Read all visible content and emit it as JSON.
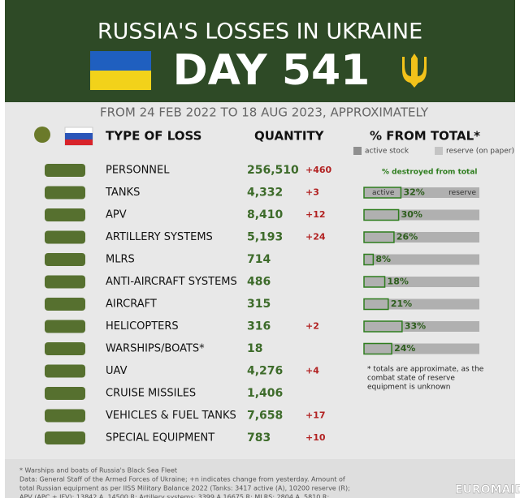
{
  "header": {
    "title": "RUSSIA'S LOSSES IN UKRAINE",
    "day": "DAY 541",
    "subtitle": "FROM 24 FEB 2022 TO 18 AUG 2023, APPROXIMATELY"
  },
  "columns": {
    "type": "TYPE OF LOSS",
    "quantity": "QUANTITY",
    "percent": "% FROM TOTAL*"
  },
  "legend": {
    "active": "active stock",
    "reserve": "reserve (on paper)"
  },
  "note": "% destroyed from total",
  "bar_labels": {
    "active": "active",
    "reserve": "reserve"
  },
  "rows": [
    {
      "label": "PERSONNEL",
      "quantity": "256,510",
      "change": "+460"
    },
    {
      "label": "TANKS",
      "quantity": "4,332",
      "change": "+3",
      "percent": {
        "value": 32,
        "label": "32%"
      }
    },
    {
      "label": "APV",
      "quantity": "8,410",
      "change": "+12",
      "percent": {
        "value": 30,
        "label": "30%"
      }
    },
    {
      "label": "ARTILLERY SYSTEMS",
      "quantity": "5,193",
      "change": "+24",
      "percent": {
        "value": 26,
        "label": "26%"
      }
    },
    {
      "label": "MLRS",
      "quantity": "714",
      "percent": {
        "value": 8,
        "label": "8%"
      }
    },
    {
      "label": "ANTI-AIRCRAFT SYSTEMS",
      "quantity": "486",
      "percent": {
        "value": 18,
        "label": "18%"
      }
    },
    {
      "label": "AIRCRAFT",
      "quantity": "315",
      "percent": {
        "value": 21,
        "label": "21%"
      }
    },
    {
      "label": "HELICOPTERS",
      "quantity": "316",
      "change": "+2",
      "percent": {
        "value": 33,
        "label": "33%"
      }
    },
    {
      "label": "WARSHIPS/BOATS*",
      "quantity": "18",
      "percent": {
        "value": 24,
        "label": "24%"
      }
    },
    {
      "label": "UAV",
      "quantity": "4,276",
      "change": "+4"
    },
    {
      "label": "CRUISE MISSILES",
      "quantity": "1,406"
    },
    {
      "label": "VEHICLES & FUEL TANKS",
      "quantity": "7,658",
      "change": "+17"
    },
    {
      "label": "SPECIAL EQUIPMENT",
      "quantity": "783",
      "change": "+10"
    }
  ],
  "totals_note": [
    "* totals are approximate, as the",
    "combat state of reserve",
    "equipment is unknown"
  ],
  "footer": [
    "* Warships and boats of Russia's Black Sea Fleet",
    "Data: General Staff of the Armed Forces of Ukraine; +n indicates change from yesterday. Amount of",
    "total Russian equipment as per IISS Military Balance 2022 (Tanks: 3417 active (A), 10200 reserve (R);",
    "APV (APC + IFV): 13842 A, 14500 R; Artillery systems: 3399 A 16675 R; MLRS: 2804 A, 5810 R;"
  ],
  "logo": "EUROMAIDAN"
}
